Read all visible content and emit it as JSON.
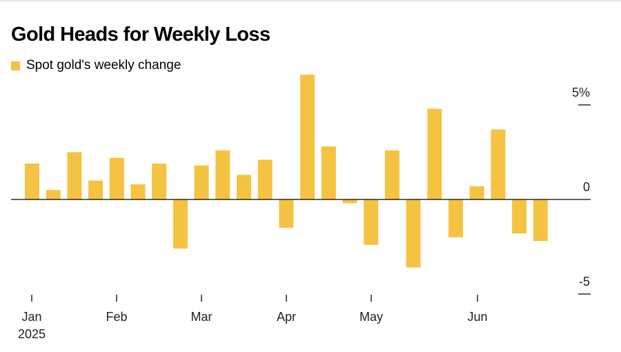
{
  "chart_data": {
    "type": "bar",
    "title": "Gold Heads for Weekly Loss",
    "series": [
      {
        "name": "Spot gold's weekly change",
        "color": "#f5c342",
        "values": [
          1.9,
          0.5,
          2.5,
          1.0,
          2.2,
          0.8,
          1.9,
          -2.6,
          1.8,
          2.6,
          1.3,
          2.1,
          -1.5,
          6.6,
          2.8,
          -0.2,
          -2.4,
          2.6,
          -3.6,
          4.8,
          -2.0,
          0.7,
          3.7,
          -1.8,
          -2.2
        ]
      }
    ],
    "x_tick_labels": [
      "Jan",
      "Feb",
      "Mar",
      "Apr",
      "May",
      "Jun"
    ],
    "x_year_label": "2025",
    "y_ticks": [
      {
        "value": 5,
        "label": "5%"
      },
      {
        "value": 0,
        "label": "0"
      },
      {
        "value": -5,
        "label": "-5"
      }
    ],
    "ylim": [
      -5,
      6.6
    ],
    "xlabel": "",
    "ylabel": "",
    "grid": false,
    "legend_position": "top-left"
  }
}
